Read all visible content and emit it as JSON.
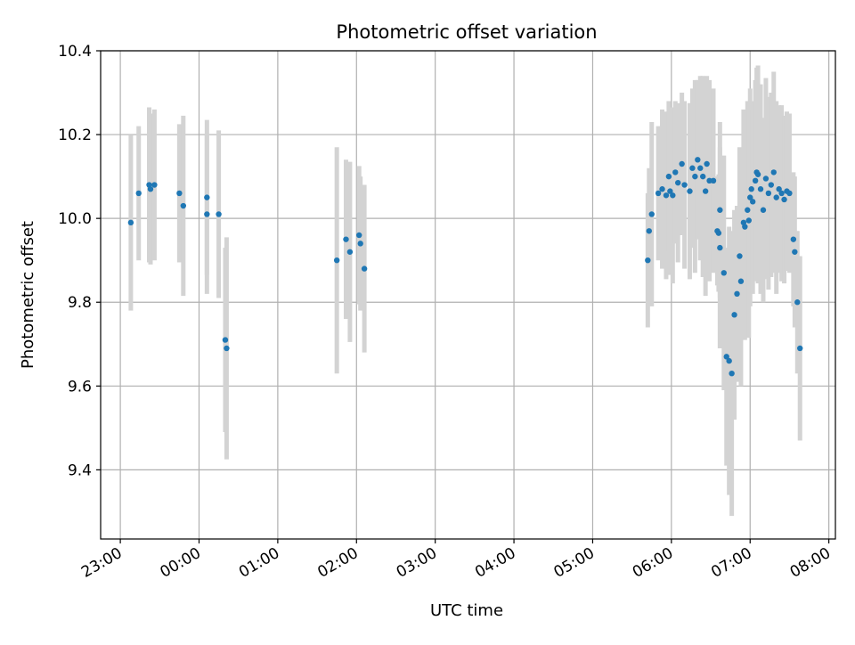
{
  "chart_data": {
    "type": "scatter",
    "title": "Photometric offset variation",
    "xlabel": "UTC time",
    "ylabel": "Photometric offset",
    "xlim": [
      "22:45",
      "08:05"
    ],
    "ylim": [
      9.235,
      10.4
    ],
    "grid": true,
    "x_ticks": [
      "23:00",
      "00:00",
      "01:00",
      "02:00",
      "03:00",
      "04:00",
      "05:00",
      "06:00",
      "07:00",
      "08:00"
    ],
    "y_ticks": [
      "9.4",
      "9.6",
      "9.8",
      "10.0",
      "10.2",
      "10.4"
    ],
    "colors": {
      "point": "#1f77b4",
      "errorbar": "#d3d3d3",
      "grid": "#b0b0b0"
    },
    "series": [
      {
        "points": [
          {
            "x": "23:08",
            "y": 9.99,
            "err": 0.21
          },
          {
            "x": "23:14",
            "y": 10.06,
            "err": 0.16
          },
          {
            "x": "23:22",
            "y": 10.08,
            "err": 0.185
          },
          {
            "x": "23:23",
            "y": 10.07,
            "err": 0.18
          },
          {
            "x": "23:26",
            "y": 10.08,
            "err": 0.18
          },
          {
            "x": "23:45",
            "y": 10.06,
            "err": 0.165
          },
          {
            "x": "23:48",
            "y": 10.03,
            "err": 0.215
          },
          {
            "x": "00:06",
            "y": 10.05,
            "err": 0.185
          },
          {
            "x": "00:06",
            "y": 10.01,
            "err": 0.19
          },
          {
            "x": "00:15",
            "y": 10.01,
            "err": 0.2
          },
          {
            "x": "00:20",
            "y": 9.71,
            "err": 0.22
          },
          {
            "x": "00:21",
            "y": 9.69,
            "err": 0.265
          },
          {
            "x": "01:45",
            "y": 9.9,
            "err": 0.27
          },
          {
            "x": "01:52",
            "y": 9.95,
            "err": 0.19
          },
          {
            "x": "01:55",
            "y": 9.92,
            "err": 0.215
          },
          {
            "x": "02:02",
            "y": 9.96,
            "err": 0.165
          },
          {
            "x": "02:03",
            "y": 9.94,
            "err": 0.16
          },
          {
            "x": "02:06",
            "y": 9.88,
            "err": 0.2
          },
          {
            "x": "05:42",
            "y": 9.9,
            "err": 0.16
          },
          {
            "x": "05:43",
            "y": 9.97,
            "err": 0.15
          },
          {
            "x": "05:45",
            "y": 10.01,
            "err": 0.22
          },
          {
            "x": "05:50",
            "y": 10.06,
            "err": 0.16
          },
          {
            "x": "05:53",
            "y": 10.07,
            "err": 0.19
          },
          {
            "x": "05:56",
            "y": 10.055,
            "err": 0.2
          },
          {
            "x": "05:58",
            "y": 10.1,
            "err": 0.18
          },
          {
            "x": "05:59",
            "y": 10.065,
            "err": 0.2
          },
          {
            "x": "06:01",
            "y": 10.055,
            "err": 0.21
          },
          {
            "x": "06:03",
            "y": 10.11,
            "err": 0.17
          },
          {
            "x": "06:05",
            "y": 10.085,
            "err": 0.19
          },
          {
            "x": "06:08",
            "y": 10.13,
            "err": 0.17
          },
          {
            "x": "06:10",
            "y": 10.08,
            "err": 0.2
          },
          {
            "x": "06:14",
            "y": 10.065,
            "err": 0.21
          },
          {
            "x": "06:16",
            "y": 10.12,
            "err": 0.19
          },
          {
            "x": "06:18",
            "y": 10.1,
            "err": 0.23
          },
          {
            "x": "06:20",
            "y": 10.14,
            "err": 0.19
          },
          {
            "x": "06:22",
            "y": 10.12,
            "err": 0.22
          },
          {
            "x": "06:24",
            "y": 10.1,
            "err": 0.24
          },
          {
            "x": "06:26",
            "y": 10.065,
            "err": 0.25
          },
          {
            "x": "06:27",
            "y": 10.13,
            "err": 0.21
          },
          {
            "x": "06:29",
            "y": 10.09,
            "err": 0.24
          },
          {
            "x": "06:32",
            "y": 10.09,
            "err": 0.22
          },
          {
            "x": "06:35",
            "y": 9.97,
            "err": 0.13
          },
          {
            "x": "06:36",
            "y": 9.965,
            "err": 0.14
          },
          {
            "x": "06:37",
            "y": 9.93,
            "err": 0.24
          },
          {
            "x": "06:37",
            "y": 10.02,
            "err": 0.21
          },
          {
            "x": "06:40",
            "y": 9.87,
            "err": 0.28
          },
          {
            "x": "06:42",
            "y": 9.67,
            "err": 0.26
          },
          {
            "x": "06:44",
            "y": 9.66,
            "err": 0.32
          },
          {
            "x": "06:46",
            "y": 9.63,
            "err": 0.34
          },
          {
            "x": "06:48",
            "y": 9.77,
            "err": 0.25
          },
          {
            "x": "06:50",
            "y": 9.82,
            "err": 0.21
          },
          {
            "x": "06:52",
            "y": 9.91,
            "err": 0.26
          },
          {
            "x": "06:53",
            "y": 9.85,
            "err": 0.25
          },
          {
            "x": "06:55",
            "y": 9.99,
            "err": 0.27
          },
          {
            "x": "06:56",
            "y": 9.98,
            "err": 0.27
          },
          {
            "x": "06:58",
            "y": 10.02,
            "err": 0.26
          },
          {
            "x": "06:59",
            "y": 9.995,
            "err": 0.28
          },
          {
            "x": "07:00",
            "y": 10.05,
            "err": 0.26
          },
          {
            "x": "07:01",
            "y": 10.07,
            "err": 0.21
          },
          {
            "x": "07:02",
            "y": 10.04,
            "err": 0.22
          },
          {
            "x": "07:04",
            "y": 10.09,
            "err": 0.24
          },
          {
            "x": "07:05",
            "y": 10.11,
            "err": 0.25
          },
          {
            "x": "07:06",
            "y": 10.105,
            "err": 0.26
          },
          {
            "x": "07:08",
            "y": 10.07,
            "err": 0.25
          },
          {
            "x": "07:10",
            "y": 10.02,
            "err": 0.22
          },
          {
            "x": "07:12",
            "y": 10.095,
            "err": 0.24
          },
          {
            "x": "07:14",
            "y": 10.06,
            "err": 0.23
          },
          {
            "x": "07:16",
            "y": 10.08,
            "err": 0.22
          },
          {
            "x": "07:18",
            "y": 10.11,
            "err": 0.24
          },
          {
            "x": "07:20",
            "y": 10.05,
            "err": 0.23
          },
          {
            "x": "07:22",
            "y": 10.07,
            "err": 0.2
          },
          {
            "x": "07:24",
            "y": 10.06,
            "err": 0.21
          },
          {
            "x": "07:26",
            "y": 10.045,
            "err": 0.2
          },
          {
            "x": "07:28",
            "y": 10.065,
            "err": 0.19
          },
          {
            "x": "07:30",
            "y": 10.06,
            "err": 0.19
          },
          {
            "x": "07:33",
            "y": 9.95,
            "err": 0.16
          },
          {
            "x": "07:34",
            "y": 9.92,
            "err": 0.18
          },
          {
            "x": "07:36",
            "y": 9.8,
            "err": 0.17
          },
          {
            "x": "07:38",
            "y": 9.69,
            "err": 0.22
          }
        ]
      }
    ]
  }
}
